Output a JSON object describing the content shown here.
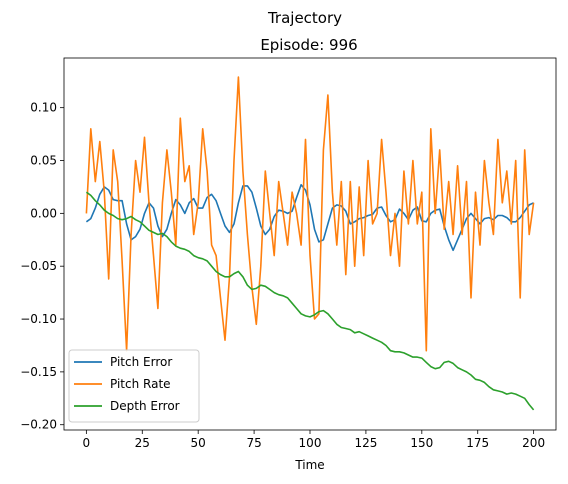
{
  "figure": {
    "suptitle": "Trajectory",
    "title": "Episode: 996"
  },
  "chart_data": {
    "type": "line",
    "title": "Episode: 996",
    "suptitle": "Trajectory",
    "xlabel": "Time",
    "ylabel": "",
    "xlim": [
      -10,
      210
    ],
    "ylim": [
      -0.205,
      0.147
    ],
    "xticks": [
      0,
      25,
      50,
      75,
      100,
      125,
      150,
      175,
      200
    ],
    "yticks": [
      -0.2,
      -0.15,
      -0.1,
      -0.05,
      0.0,
      0.05,
      0.1
    ],
    "ytick_labels": [
      "−0.20",
      "−0.15",
      "−0.10",
      "−0.05",
      "0.00",
      "0.05",
      "0.10"
    ],
    "grid": false,
    "legend": "lower-left",
    "series": [
      {
        "name": "Pitch Error",
        "color": "#1f77b4",
        "x": [
          0,
          2,
          4,
          6,
          8,
          10,
          12,
          14,
          16,
          18,
          20,
          22,
          24,
          26,
          28,
          30,
          32,
          34,
          36,
          38,
          40,
          42,
          44,
          46,
          48,
          50,
          52,
          54,
          56,
          58,
          60,
          62,
          64,
          66,
          68,
          70,
          72,
          74,
          76,
          78,
          80,
          82,
          84,
          86,
          88,
          90,
          92,
          94,
          96,
          98,
          100,
          102,
          104,
          106,
          108,
          110,
          112,
          114,
          116,
          118,
          120,
          122,
          124,
          126,
          128,
          130,
          132,
          134,
          136,
          138,
          140,
          142,
          144,
          146,
          148,
          150,
          152,
          154,
          156,
          158,
          160,
          162,
          164,
          166,
          168,
          170,
          172,
          174,
          176,
          178,
          180,
          182,
          184,
          186,
          188,
          190,
          192,
          194,
          196,
          198,
          200
        ],
        "y": [
          -0.008,
          -0.005,
          0.005,
          0.018,
          0.025,
          0.022,
          0.013,
          0.012,
          0.012,
          -0.01,
          -0.025,
          -0.022,
          -0.015,
          0.0,
          0.01,
          0.005,
          -0.012,
          -0.022,
          -0.015,
          0.0,
          0.013,
          0.008,
          0.0,
          0.01,
          0.014,
          0.005,
          0.005,
          0.015,
          0.018,
          0.012,
          0.0,
          -0.012,
          -0.018,
          -0.01,
          0.01,
          0.026,
          0.026,
          0.02,
          0.005,
          -0.012,
          -0.02,
          -0.015,
          -0.003,
          0.003,
          0.002,
          0.0,
          0.002,
          0.015,
          0.027,
          0.022,
          0.008,
          -0.015,
          -0.027,
          -0.025,
          -0.01,
          0.005,
          0.008,
          0.007,
          0.002,
          -0.01,
          -0.008,
          -0.005,
          -0.004,
          -0.002,
          -0.001,
          0.005,
          0.006,
          -0.002,
          -0.008,
          -0.006,
          0.004,
          0.0,
          -0.006,
          0.003,
          0.006,
          -0.007,
          -0.008,
          0.0,
          0.003,
          0.004,
          -0.012,
          -0.025,
          -0.035,
          -0.025,
          -0.015,
          -0.005,
          0.0,
          -0.005,
          -0.01,
          -0.005,
          -0.004,
          -0.006,
          -0.002,
          -0.002,
          -0.004,
          -0.008,
          -0.008,
          -0.004,
          0.002,
          0.008,
          0.01
        ]
      },
      {
        "name": "Pitch Rate",
        "color": "#ff7f0e",
        "x": [
          0,
          2,
          4,
          6,
          8,
          10,
          12,
          14,
          16,
          18,
          20,
          22,
          24,
          26,
          28,
          30,
          32,
          34,
          36,
          38,
          40,
          42,
          44,
          46,
          48,
          50,
          52,
          54,
          56,
          58,
          60,
          62,
          64,
          66,
          68,
          70,
          72,
          74,
          76,
          78,
          80,
          82,
          84,
          86,
          88,
          90,
          92,
          94,
          96,
          98,
          100,
          102,
          104,
          106,
          108,
          110,
          112,
          114,
          116,
          118,
          120,
          122,
          124,
          126,
          128,
          130,
          132,
          134,
          136,
          138,
          140,
          142,
          144,
          146,
          148,
          150,
          152,
          154,
          156,
          158,
          160,
          162,
          164,
          166,
          168,
          170,
          172,
          174,
          176,
          178,
          180,
          182,
          184,
          186,
          188,
          190,
          192,
          194,
          196,
          198,
          200
        ],
        "y": [
          0.0,
          0.08,
          0.03,
          0.068,
          0.02,
          -0.062,
          0.06,
          0.03,
          -0.045,
          -0.13,
          -0.02,
          0.05,
          0.02,
          0.072,
          0.01,
          -0.04,
          -0.09,
          0.01,
          0.06,
          0.02,
          -0.03,
          0.09,
          0.03,
          0.045,
          -0.02,
          0.01,
          0.08,
          0.04,
          -0.03,
          -0.04,
          -0.08,
          -0.12,
          -0.06,
          0.05,
          0.129,
          0.04,
          -0.02,
          -0.07,
          -0.105,
          -0.05,
          0.04,
          0.0,
          -0.04,
          0.03,
          0.0,
          -0.03,
          0.02,
          0.0,
          -0.03,
          0.07,
          -0.04,
          -0.1,
          -0.095,
          0.06,
          0.112,
          0.02,
          -0.03,
          0.03,
          -0.058,
          0.03,
          -0.05,
          0.025,
          -0.04,
          0.05,
          -0.01,
          0.0,
          0.07,
          0.02,
          -0.04,
          0.0,
          -0.05,
          0.04,
          -0.01,
          0.05,
          -0.01,
          0.02,
          -0.13,
          0.08,
          0.0,
          0.06,
          -0.015,
          0.03,
          -0.02,
          0.045,
          -0.02,
          0.03,
          -0.08,
          0.02,
          -0.03,
          0.05,
          0.01,
          -0.02,
          0.07,
          0.01,
          0.04,
          -0.01,
          0.05,
          -0.08,
          0.06,
          -0.02,
          0.01
        ]
      },
      {
        "name": "Depth Error",
        "color": "#2ca02c",
        "x": [
          0,
          2,
          4,
          6,
          8,
          10,
          12,
          14,
          16,
          18,
          20,
          22,
          24,
          26,
          28,
          30,
          32,
          34,
          36,
          38,
          40,
          42,
          44,
          46,
          48,
          50,
          52,
          54,
          56,
          58,
          60,
          62,
          64,
          66,
          68,
          70,
          72,
          74,
          76,
          78,
          80,
          82,
          84,
          86,
          88,
          90,
          92,
          94,
          96,
          98,
          100,
          102,
          104,
          106,
          108,
          110,
          112,
          114,
          116,
          118,
          120,
          122,
          124,
          126,
          128,
          130,
          132,
          134,
          136,
          138,
          140,
          142,
          144,
          146,
          148,
          150,
          152,
          154,
          156,
          158,
          160,
          162,
          164,
          166,
          168,
          170,
          172,
          174,
          176,
          178,
          180,
          182,
          184,
          186,
          188,
          190,
          192,
          194,
          196,
          198,
          200
        ],
        "y": [
          0.02,
          0.017,
          0.012,
          0.008,
          0.003,
          0.0,
          -0.002,
          -0.005,
          -0.006,
          -0.005,
          -0.003,
          -0.006,
          -0.008,
          -0.012,
          -0.016,
          -0.018,
          -0.02,
          -0.019,
          -0.022,
          -0.027,
          -0.031,
          -0.033,
          -0.034,
          -0.036,
          -0.04,
          -0.042,
          -0.043,
          -0.045,
          -0.05,
          -0.055,
          -0.058,
          -0.06,
          -0.06,
          -0.057,
          -0.055,
          -0.06,
          -0.068,
          -0.072,
          -0.071,
          -0.068,
          -0.069,
          -0.072,
          -0.075,
          -0.077,
          -0.078,
          -0.08,
          -0.085,
          -0.09,
          -0.095,
          -0.097,
          -0.098,
          -0.096,
          -0.093,
          -0.092,
          -0.095,
          -0.1,
          -0.105,
          -0.108,
          -0.109,
          -0.11,
          -0.113,
          -0.112,
          -0.114,
          -0.116,
          -0.118,
          -0.12,
          -0.122,
          -0.125,
          -0.13,
          -0.131,
          -0.131,
          -0.132,
          -0.134,
          -0.136,
          -0.136,
          -0.137,
          -0.141,
          -0.145,
          -0.147,
          -0.146,
          -0.141,
          -0.14,
          -0.142,
          -0.146,
          -0.148,
          -0.15,
          -0.153,
          -0.157,
          -0.158,
          -0.16,
          -0.164,
          -0.167,
          -0.168,
          -0.169,
          -0.171,
          -0.17,
          -0.171,
          -0.173,
          -0.175,
          -0.181,
          -0.186
        ]
      }
    ]
  }
}
